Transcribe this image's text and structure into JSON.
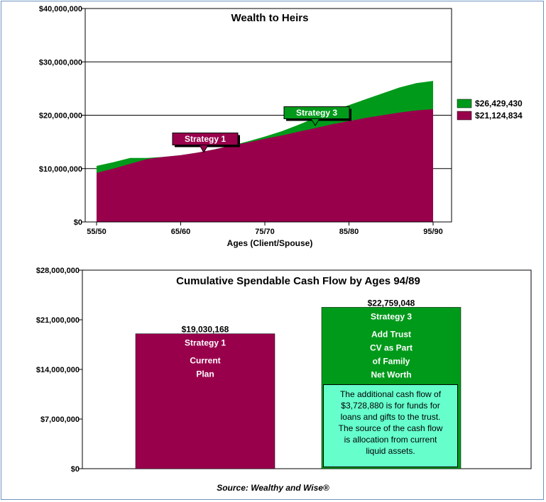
{
  "colors": {
    "strategy1": "#99004c",
    "strategy3": "#009a1a",
    "callout_bg": "#66ffcc"
  },
  "chart_data": [
    {
      "type": "area",
      "title": "Wealth to Heirs",
      "xlabel": "Ages (Client/Spouse)",
      "ylabel": "",
      "x_ticks": [
        "55/50",
        "65/60",
        "75/70",
        "85/80",
        "95/90"
      ],
      "y_ticks": [
        "$40,000,000",
        "$30,000,000",
        "$20,000,000",
        "$10,000,000",
        "$0"
      ],
      "ylim": [
        0,
        40000000
      ],
      "grid": true,
      "legend_position": "right",
      "annotations": [
        "Strategy 1",
        "Strategy 3"
      ],
      "series": [
        {
          "name": "$26,429,430",
          "color": "#009a1a",
          "x": [
            0,
            2,
            4,
            6,
            8,
            10,
            12,
            14,
            16,
            18,
            20,
            22,
            24,
            26,
            28,
            30,
            32,
            34,
            36,
            38,
            40
          ],
          "values": [
            10500000,
            11200000,
            12000000,
            12000000,
            12200000,
            12500000,
            13000000,
            13600000,
            14300000,
            15100000,
            16000000,
            17000000,
            18200000,
            19500000,
            20800000,
            21900000,
            23000000,
            24100000,
            25200000,
            26000000,
            26429430
          ]
        },
        {
          "name": "$21,124,834",
          "color": "#99004c",
          "x": [
            0,
            2,
            4,
            6,
            8,
            10,
            12,
            14,
            16,
            18,
            20,
            22,
            24,
            26,
            28,
            30,
            32,
            34,
            36,
            38,
            40
          ],
          "values": [
            9200000,
            10000000,
            10900000,
            11800000,
            12200000,
            12500000,
            13000000,
            13600000,
            14300000,
            14900000,
            15600000,
            16200000,
            16900000,
            17600000,
            18300000,
            18900000,
            19500000,
            20000000,
            20500000,
            20900000,
            21124834
          ]
        }
      ]
    },
    {
      "type": "bar",
      "title": "Cumulative Spendable Cash Flow by Ages 94/89",
      "xlabel": "",
      "ylabel": "",
      "y_ticks": [
        "$28,000,000",
        "$21,000,000",
        "$14,000,000",
        "$7,000,000",
        "$0"
      ],
      "ylim": [
        0,
        28000000
      ],
      "grid": false,
      "bars": [
        {
          "value": 19030168,
          "value_label": "$19,030,168",
          "color": "#99004c",
          "label_lines": [
            "Strategy 1",
            "Current",
            "Plan"
          ]
        },
        {
          "value": 22759048,
          "value_label": "$22,759,048",
          "color": "#009a1a",
          "label_lines": [
            "Strategy 3",
            "Add Trust",
            "CV as Part",
            "of Family",
            "Net Worth"
          ]
        }
      ],
      "callout_lines": [
        "The additional cash flow of",
        "$3,728,880 is for funds for",
        "loans and gifts to the trust.",
        "The source of the cash flow",
        "is allocation from current",
        "liquid assets."
      ]
    }
  ],
  "source": "Source: Wealthy and Wise®"
}
